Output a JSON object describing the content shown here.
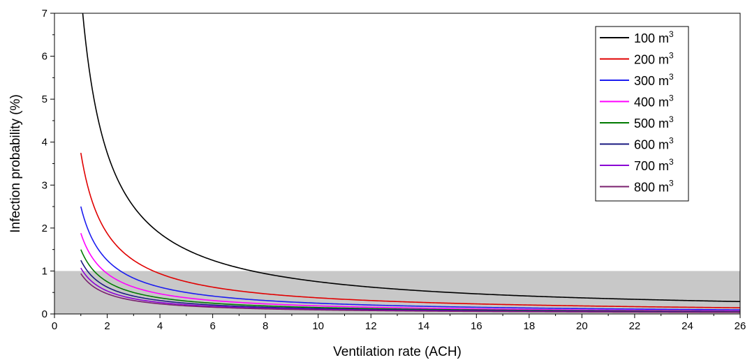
{
  "chart_data": {
    "type": "line",
    "xlabel": "Ventilation rate (ACH)",
    "ylabel": "Infection probability (%)",
    "xlim": [
      0,
      26
    ],
    "ylim": [
      0,
      7
    ],
    "xticks": [
      0,
      2,
      4,
      6,
      8,
      10,
      12,
      14,
      16,
      18,
      20,
      22,
      24,
      26
    ],
    "yticks": [
      0,
      1,
      2,
      3,
      4,
      5,
      6,
      7
    ],
    "grid": false,
    "legend_position": "top-right",
    "shaded_band": {
      "y_from": 0,
      "y_to": 1,
      "color": "#c8c8c8"
    },
    "x_range": [
      1,
      26
    ],
    "model": "y = k / x",
    "series": [
      {
        "name": "100 m",
        "name_sup": "3",
        "color": "#000000",
        "k": 7.5
      },
      {
        "name": "200 m",
        "name_sup": "3",
        "color": "#e00000",
        "k": 3.75
      },
      {
        "name": "300 m",
        "name_sup": "3",
        "color": "#1c1cf0",
        "k": 2.5
      },
      {
        "name": "400 m",
        "name_sup": "3",
        "color": "#ff00ff",
        "k": 1.88
      },
      {
        "name": "500 m",
        "name_sup": "3",
        "color": "#007a00",
        "k": 1.5
      },
      {
        "name": "600 m",
        "name_sup": "3",
        "color": "#1a1a80",
        "k": 1.25
      },
      {
        "name": "700 m",
        "name_sup": "3",
        "color": "#8a00d4",
        "k": 1.07
      },
      {
        "name": "800 m",
        "name_sup": "3",
        "color": "#7a1f6e",
        "k": 0.94
      }
    ]
  }
}
